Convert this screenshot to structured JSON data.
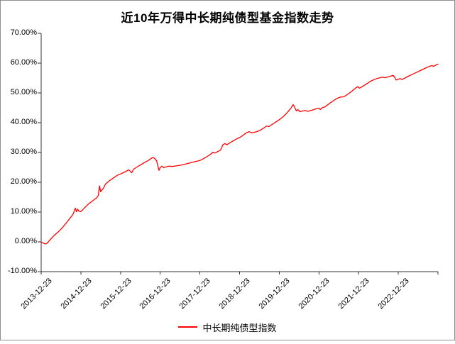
{
  "window": {
    "background": "#ffffff",
    "frame_border_color": "#8f8f8f"
  },
  "title": "近10年万得中长期纯债型基金指数走势",
  "legend": {
    "label": "中长期纯债型指数",
    "line_color": "#ff0000"
  },
  "colors": {
    "axis": "#333333",
    "text": "#000000",
    "series": "#ff0000"
  },
  "chart_data": {
    "type": "line",
    "title": "近10年万得中长期纯债型基金指数走势",
    "grid": false,
    "legend_position": "bottom-center",
    "x_unit": "years since 2013-12-23",
    "xlim": [
      0,
      10
    ],
    "ylim": [
      -10,
      70
    ],
    "ytick_step": 10,
    "yticklabels": [
      "70.00%",
      "60.00%",
      "50.00%",
      "40.00%",
      "30.00%",
      "20.00%",
      "10.00%",
      "0.00%",
      "-10.00%"
    ],
    "xticklabels": [
      "2013-12-23",
      "2014-12-23",
      "2015-12-23",
      "2016-12-23",
      "2017-12-23",
      "2018-12-23",
      "2019-12-23",
      "2020-12-23",
      "2021-12-23",
      "2022-12-23"
    ],
    "series": [
      {
        "name": "中长期纯债型指数",
        "color": "#ff0000",
        "points": [
          [
            0.0,
            0.0
          ],
          [
            0.04,
            -0.3
          ],
          [
            0.08,
            -0.6
          ],
          [
            0.12,
            -0.7
          ],
          [
            0.16,
            -0.3
          ],
          [
            0.2,
            0.3
          ],
          [
            0.25,
            1.1
          ],
          [
            0.3,
            1.8
          ],
          [
            0.35,
            2.4
          ],
          [
            0.4,
            3.0
          ],
          [
            0.45,
            3.6
          ],
          [
            0.5,
            4.3
          ],
          [
            0.55,
            5.0
          ],
          [
            0.6,
            5.8
          ],
          [
            0.65,
            6.6
          ],
          [
            0.7,
            7.5
          ],
          [
            0.75,
            8.3
          ],
          [
            0.8,
            9.2
          ],
          [
            0.83,
            10.2
          ],
          [
            0.86,
            11.3
          ],
          [
            0.89,
            10.1
          ],
          [
            0.92,
            11.0
          ],
          [
            0.95,
            10.3
          ],
          [
            1.0,
            10.2
          ],
          [
            1.05,
            10.8
          ],
          [
            1.1,
            11.5
          ],
          [
            1.15,
            12.2
          ],
          [
            1.2,
            12.8
          ],
          [
            1.25,
            13.3
          ],
          [
            1.3,
            13.8
          ],
          [
            1.35,
            14.3
          ],
          [
            1.4,
            14.8
          ],
          [
            1.44,
            15.6
          ],
          [
            1.47,
            18.8
          ],
          [
            1.5,
            16.8
          ],
          [
            1.53,
            17.4
          ],
          [
            1.57,
            18.0
          ],
          [
            1.62,
            19.4
          ],
          [
            1.7,
            20.3
          ],
          [
            1.78,
            21.1
          ],
          [
            1.86,
            21.8
          ],
          [
            1.94,
            22.5
          ],
          [
            2.0,
            22.8
          ],
          [
            2.06,
            23.2
          ],
          [
            2.13,
            23.6
          ],
          [
            2.2,
            24.2
          ],
          [
            2.24,
            23.8
          ],
          [
            2.28,
            23.2
          ],
          [
            2.33,
            24.4
          ],
          [
            2.4,
            25.0
          ],
          [
            2.5,
            25.8
          ],
          [
            2.6,
            26.6
          ],
          [
            2.7,
            27.3
          ],
          [
            2.77,
            28.0
          ],
          [
            2.82,
            28.3
          ],
          [
            2.87,
            27.9
          ],
          [
            2.91,
            27.2
          ],
          [
            2.94,
            25.6
          ],
          [
            2.97,
            24.0
          ],
          [
            3.0,
            24.9
          ],
          [
            3.04,
            25.4
          ],
          [
            3.09,
            24.9
          ],
          [
            3.15,
            25.2
          ],
          [
            3.22,
            25.4
          ],
          [
            3.3,
            25.3
          ],
          [
            3.4,
            25.5
          ],
          [
            3.5,
            25.7
          ],
          [
            3.6,
            26.0
          ],
          [
            3.7,
            26.3
          ],
          [
            3.8,
            26.7
          ],
          [
            3.9,
            27.0
          ],
          [
            4.0,
            27.3
          ],
          [
            4.1,
            28.0
          ],
          [
            4.2,
            28.8
          ],
          [
            4.28,
            29.5
          ],
          [
            4.33,
            30.1
          ],
          [
            4.38,
            29.8
          ],
          [
            4.45,
            30.3
          ],
          [
            4.52,
            30.8
          ],
          [
            4.58,
            32.6
          ],
          [
            4.63,
            33.0
          ],
          [
            4.68,
            32.6
          ],
          [
            4.75,
            33.2
          ],
          [
            4.85,
            34.0
          ],
          [
            4.93,
            34.6
          ],
          [
            5.0,
            35.0
          ],
          [
            5.08,
            35.7
          ],
          [
            5.16,
            36.5
          ],
          [
            5.24,
            37.0
          ],
          [
            5.3,
            36.6
          ],
          [
            5.38,
            36.8
          ],
          [
            5.46,
            37.1
          ],
          [
            5.54,
            37.6
          ],
          [
            5.62,
            38.3
          ],
          [
            5.68,
            38.9
          ],
          [
            5.74,
            38.7
          ],
          [
            5.82,
            39.4
          ],
          [
            5.9,
            40.1
          ],
          [
            6.0,
            41.0
          ],
          [
            6.08,
            41.8
          ],
          [
            6.16,
            42.8
          ],
          [
            6.24,
            44.0
          ],
          [
            6.3,
            45.0
          ],
          [
            6.35,
            46.1
          ],
          [
            6.39,
            45.2
          ],
          [
            6.43,
            44.0
          ],
          [
            6.47,
            44.4
          ],
          [
            6.52,
            43.7
          ],
          [
            6.58,
            43.9
          ],
          [
            6.65,
            44.1
          ],
          [
            6.72,
            43.8
          ],
          [
            6.8,
            44.1
          ],
          [
            6.88,
            44.4
          ],
          [
            6.95,
            44.8
          ],
          [
            7.0,
            44.9
          ],
          [
            7.03,
            44.4
          ],
          [
            7.08,
            45.0
          ],
          [
            7.15,
            45.3
          ],
          [
            7.22,
            46.0
          ],
          [
            7.3,
            46.8
          ],
          [
            7.38,
            47.5
          ],
          [
            7.46,
            48.2
          ],
          [
            7.54,
            48.6
          ],
          [
            7.62,
            48.7
          ],
          [
            7.7,
            49.3
          ],
          [
            7.78,
            50.1
          ],
          [
            7.86,
            50.9
          ],
          [
            7.93,
            51.7
          ],
          [
            7.98,
            52.1
          ],
          [
            8.02,
            51.6
          ],
          [
            8.08,
            52.0
          ],
          [
            8.15,
            52.6
          ],
          [
            8.22,
            53.2
          ],
          [
            8.3,
            53.9
          ],
          [
            8.38,
            54.4
          ],
          [
            8.46,
            54.8
          ],
          [
            8.54,
            55.1
          ],
          [
            8.6,
            55.3
          ],
          [
            8.66,
            55.1
          ],
          [
            8.72,
            55.3
          ],
          [
            8.8,
            55.6
          ],
          [
            8.87,
            55.9
          ],
          [
            8.91,
            55.2
          ],
          [
            8.95,
            54.3
          ],
          [
            9.0,
            54.6
          ],
          [
            9.05,
            54.8
          ],
          [
            9.1,
            54.5
          ],
          [
            9.17,
            55.0
          ],
          [
            9.25,
            55.6
          ],
          [
            9.33,
            56.1
          ],
          [
            9.41,
            56.6
          ],
          [
            9.49,
            57.1
          ],
          [
            9.57,
            57.6
          ],
          [
            9.65,
            58.1
          ],
          [
            9.73,
            58.6
          ],
          [
            9.8,
            59.0
          ],
          [
            9.85,
            59.2
          ],
          [
            9.89,
            58.9
          ],
          [
            9.94,
            59.3
          ],
          [
            10.0,
            59.7
          ]
        ]
      }
    ]
  }
}
